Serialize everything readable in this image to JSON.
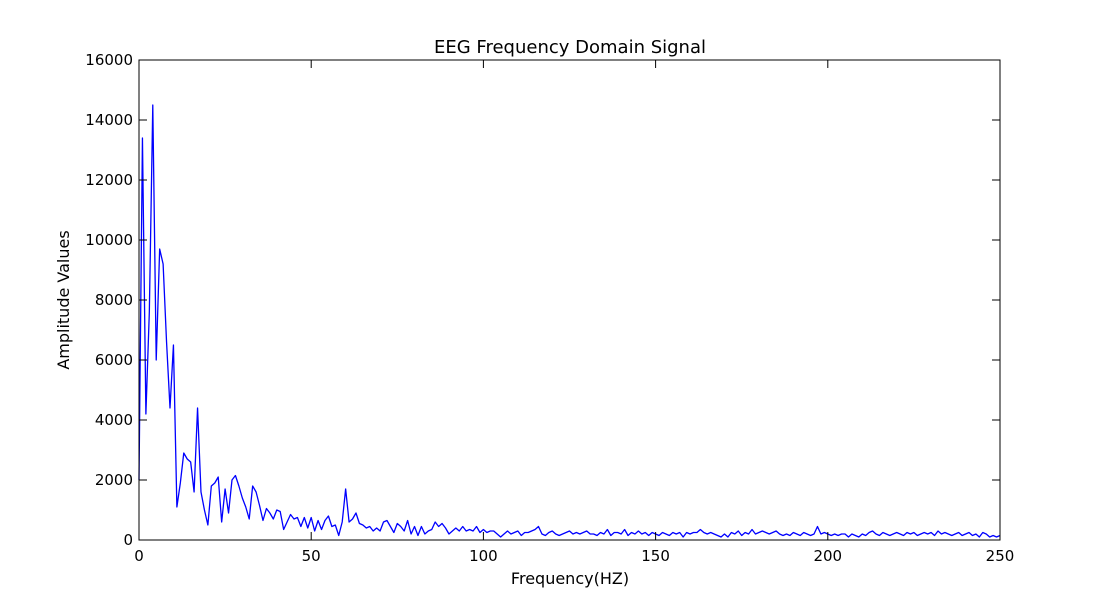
{
  "chart_data": {
    "type": "line",
    "title": "EEG Frequency Domain Signal",
    "xlabel": "Frequency(HZ)",
    "ylabel": "Amplitude Values",
    "xlim": [
      0,
      250
    ],
    "ylim": [
      0,
      16000
    ],
    "xticks": [
      0,
      50,
      100,
      150,
      200,
      250
    ],
    "yticks": [
      0,
      2000,
      4000,
      6000,
      8000,
      10000,
      12000,
      14000,
      16000
    ],
    "grid": false,
    "legend": "none",
    "series": [
      {
        "color": "#0000ff",
        "points": [
          [
            0,
            2000
          ],
          [
            1,
            13400
          ],
          [
            2,
            4200
          ],
          [
            3,
            7600
          ],
          [
            4,
            14500
          ],
          [
            5,
            6000
          ],
          [
            6,
            9700
          ],
          [
            7,
            9200
          ],
          [
            8,
            6600
          ],
          [
            9,
            4400
          ],
          [
            10,
            6500
          ],
          [
            11,
            1100
          ],
          [
            12,
            1900
          ],
          [
            13,
            2900
          ],
          [
            14,
            2700
          ],
          [
            15,
            2600
          ],
          [
            16,
            1600
          ],
          [
            17,
            4400
          ],
          [
            18,
            1600
          ],
          [
            19,
            1000
          ],
          [
            20,
            500
          ],
          [
            21,
            1800
          ],
          [
            22,
            1900
          ],
          [
            23,
            2100
          ],
          [
            24,
            600
          ],
          [
            25,
            1700
          ],
          [
            26,
            900
          ],
          [
            27,
            2000
          ],
          [
            28,
            2150
          ],
          [
            29,
            1800
          ],
          [
            30,
            1400
          ],
          [
            31,
            1100
          ],
          [
            32,
            700
          ],
          [
            33,
            1800
          ],
          [
            34,
            1600
          ],
          [
            35,
            1150
          ],
          [
            36,
            650
          ],
          [
            37,
            1050
          ],
          [
            38,
            900
          ],
          [
            39,
            700
          ],
          [
            40,
            1000
          ],
          [
            41,
            950
          ],
          [
            42,
            350
          ],
          [
            43,
            600
          ],
          [
            44,
            850
          ],
          [
            45,
            700
          ],
          [
            46,
            750
          ],
          [
            47,
            450
          ],
          [
            48,
            750
          ],
          [
            49,
            400
          ],
          [
            50,
            750
          ],
          [
            51,
            300
          ],
          [
            52,
            650
          ],
          [
            53,
            350
          ],
          [
            54,
            650
          ],
          [
            55,
            800
          ],
          [
            56,
            450
          ],
          [
            57,
            500
          ],
          [
            58,
            150
          ],
          [
            59,
            600
          ],
          [
            60,
            1700
          ],
          [
            61,
            600
          ],
          [
            62,
            700
          ],
          [
            63,
            900
          ],
          [
            64,
            550
          ],
          [
            65,
            500
          ],
          [
            66,
            400
          ],
          [
            67,
            450
          ],
          [
            68,
            300
          ],
          [
            69,
            400
          ],
          [
            70,
            300
          ],
          [
            71,
            600
          ],
          [
            72,
            650
          ],
          [
            73,
            450
          ],
          [
            74,
            250
          ],
          [
            75,
            550
          ],
          [
            76,
            450
          ],
          [
            77,
            300
          ],
          [
            78,
            650
          ],
          [
            79,
            200
          ],
          [
            80,
            450
          ],
          [
            81,
            150
          ],
          [
            82,
            450
          ],
          [
            83,
            200
          ],
          [
            84,
            300
          ],
          [
            85,
            350
          ],
          [
            86,
            600
          ],
          [
            87,
            450
          ],
          [
            88,
            550
          ],
          [
            89,
            400
          ],
          [
            90,
            200
          ],
          [
            91,
            300
          ],
          [
            92,
            400
          ],
          [
            93,
            300
          ],
          [
            94,
            450
          ],
          [
            95,
            300
          ],
          [
            96,
            350
          ],
          [
            97,
            300
          ],
          [
            98,
            450
          ],
          [
            99,
            250
          ],
          [
            100,
            350
          ],
          [
            101,
            250
          ],
          [
            102,
            300
          ],
          [
            103,
            300
          ],
          [
            104,
            200
          ],
          [
            105,
            100
          ],
          [
            106,
            200
          ],
          [
            107,
            300
          ],
          [
            108,
            200
          ],
          [
            109,
            250
          ],
          [
            110,
            300
          ],
          [
            111,
            150
          ],
          [
            112,
            250
          ],
          [
            113,
            250
          ],
          [
            114,
            300
          ],
          [
            115,
            350
          ],
          [
            116,
            450
          ],
          [
            117,
            200
          ],
          [
            118,
            150
          ],
          [
            119,
            250
          ],
          [
            120,
            300
          ],
          [
            121,
            200
          ],
          [
            122,
            150
          ],
          [
            123,
            200
          ],
          [
            124,
            250
          ],
          [
            125,
            300
          ],
          [
            126,
            200
          ],
          [
            127,
            250
          ],
          [
            128,
            200
          ],
          [
            129,
            250
          ],
          [
            130,
            300
          ],
          [
            131,
            200
          ],
          [
            132,
            200
          ],
          [
            133,
            150
          ],
          [
            134,
            250
          ],
          [
            135,
            200
          ],
          [
            136,
            350
          ],
          [
            137,
            150
          ],
          [
            138,
            250
          ],
          [
            139,
            250
          ],
          [
            140,
            200
          ],
          [
            141,
            350
          ],
          [
            142,
            150
          ],
          [
            143,
            250
          ],
          [
            144,
            200
          ],
          [
            145,
            300
          ],
          [
            146,
            200
          ],
          [
            147,
            250
          ],
          [
            148,
            150
          ],
          [
            149,
            250
          ],
          [
            150,
            200
          ],
          [
            151,
            150
          ],
          [
            152,
            250
          ],
          [
            153,
            200
          ],
          [
            154,
            150
          ],
          [
            155,
            250
          ],
          [
            156,
            200
          ],
          [
            157,
            250
          ],
          [
            158,
            100
          ],
          [
            159,
            250
          ],
          [
            160,
            200
          ],
          [
            161,
            250
          ],
          [
            162,
            250
          ],
          [
            163,
            350
          ],
          [
            164,
            250
          ],
          [
            165,
            200
          ],
          [
            166,
            250
          ],
          [
            167,
            200
          ],
          [
            168,
            150
          ],
          [
            169,
            100
          ],
          [
            170,
            200
          ],
          [
            171,
            100
          ],
          [
            172,
            250
          ],
          [
            173,
            200
          ],
          [
            174,
            300
          ],
          [
            175,
            150
          ],
          [
            176,
            250
          ],
          [
            177,
            200
          ],
          [
            178,
            350
          ],
          [
            179,
            200
          ],
          [
            180,
            250
          ],
          [
            181,
            300
          ],
          [
            182,
            250
          ],
          [
            183,
            200
          ],
          [
            184,
            250
          ],
          [
            185,
            300
          ],
          [
            186,
            200
          ],
          [
            187,
            150
          ],
          [
            188,
            200
          ],
          [
            189,
            150
          ],
          [
            190,
            250
          ],
          [
            191,
            200
          ],
          [
            192,
            150
          ],
          [
            193,
            250
          ],
          [
            194,
            200
          ],
          [
            195,
            150
          ],
          [
            196,
            200
          ],
          [
            197,
            450
          ],
          [
            198,
            200
          ],
          [
            199,
            250
          ],
          [
            200,
            200
          ],
          [
            201,
            150
          ],
          [
            202,
            200
          ],
          [
            203,
            150
          ],
          [
            204,
            200
          ],
          [
            205,
            200
          ],
          [
            206,
            100
          ],
          [
            207,
            200
          ],
          [
            208,
            150
          ],
          [
            209,
            100
          ],
          [
            210,
            200
          ],
          [
            211,
            150
          ],
          [
            212,
            250
          ],
          [
            213,
            300
          ],
          [
            214,
            200
          ],
          [
            215,
            150
          ],
          [
            216,
            250
          ],
          [
            217,
            200
          ],
          [
            218,
            150
          ],
          [
            219,
            200
          ],
          [
            220,
            250
          ],
          [
            221,
            200
          ],
          [
            222,
            150
          ],
          [
            223,
            250
          ],
          [
            224,
            200
          ],
          [
            225,
            250
          ],
          [
            226,
            150
          ],
          [
            227,
            200
          ],
          [
            228,
            250
          ],
          [
            229,
            200
          ],
          [
            230,
            250
          ],
          [
            231,
            150
          ],
          [
            232,
            300
          ],
          [
            233,
            200
          ],
          [
            234,
            250
          ],
          [
            235,
            200
          ],
          [
            236,
            150
          ],
          [
            237,
            200
          ],
          [
            238,
            250
          ],
          [
            239,
            150
          ],
          [
            240,
            200
          ],
          [
            241,
            250
          ],
          [
            242,
            150
          ],
          [
            243,
            200
          ],
          [
            244,
            100
          ],
          [
            245,
            250
          ],
          [
            246,
            200
          ],
          [
            247,
            100
          ],
          [
            248,
            150
          ],
          [
            249,
            100
          ],
          [
            250,
            150
          ]
        ]
      }
    ]
  }
}
